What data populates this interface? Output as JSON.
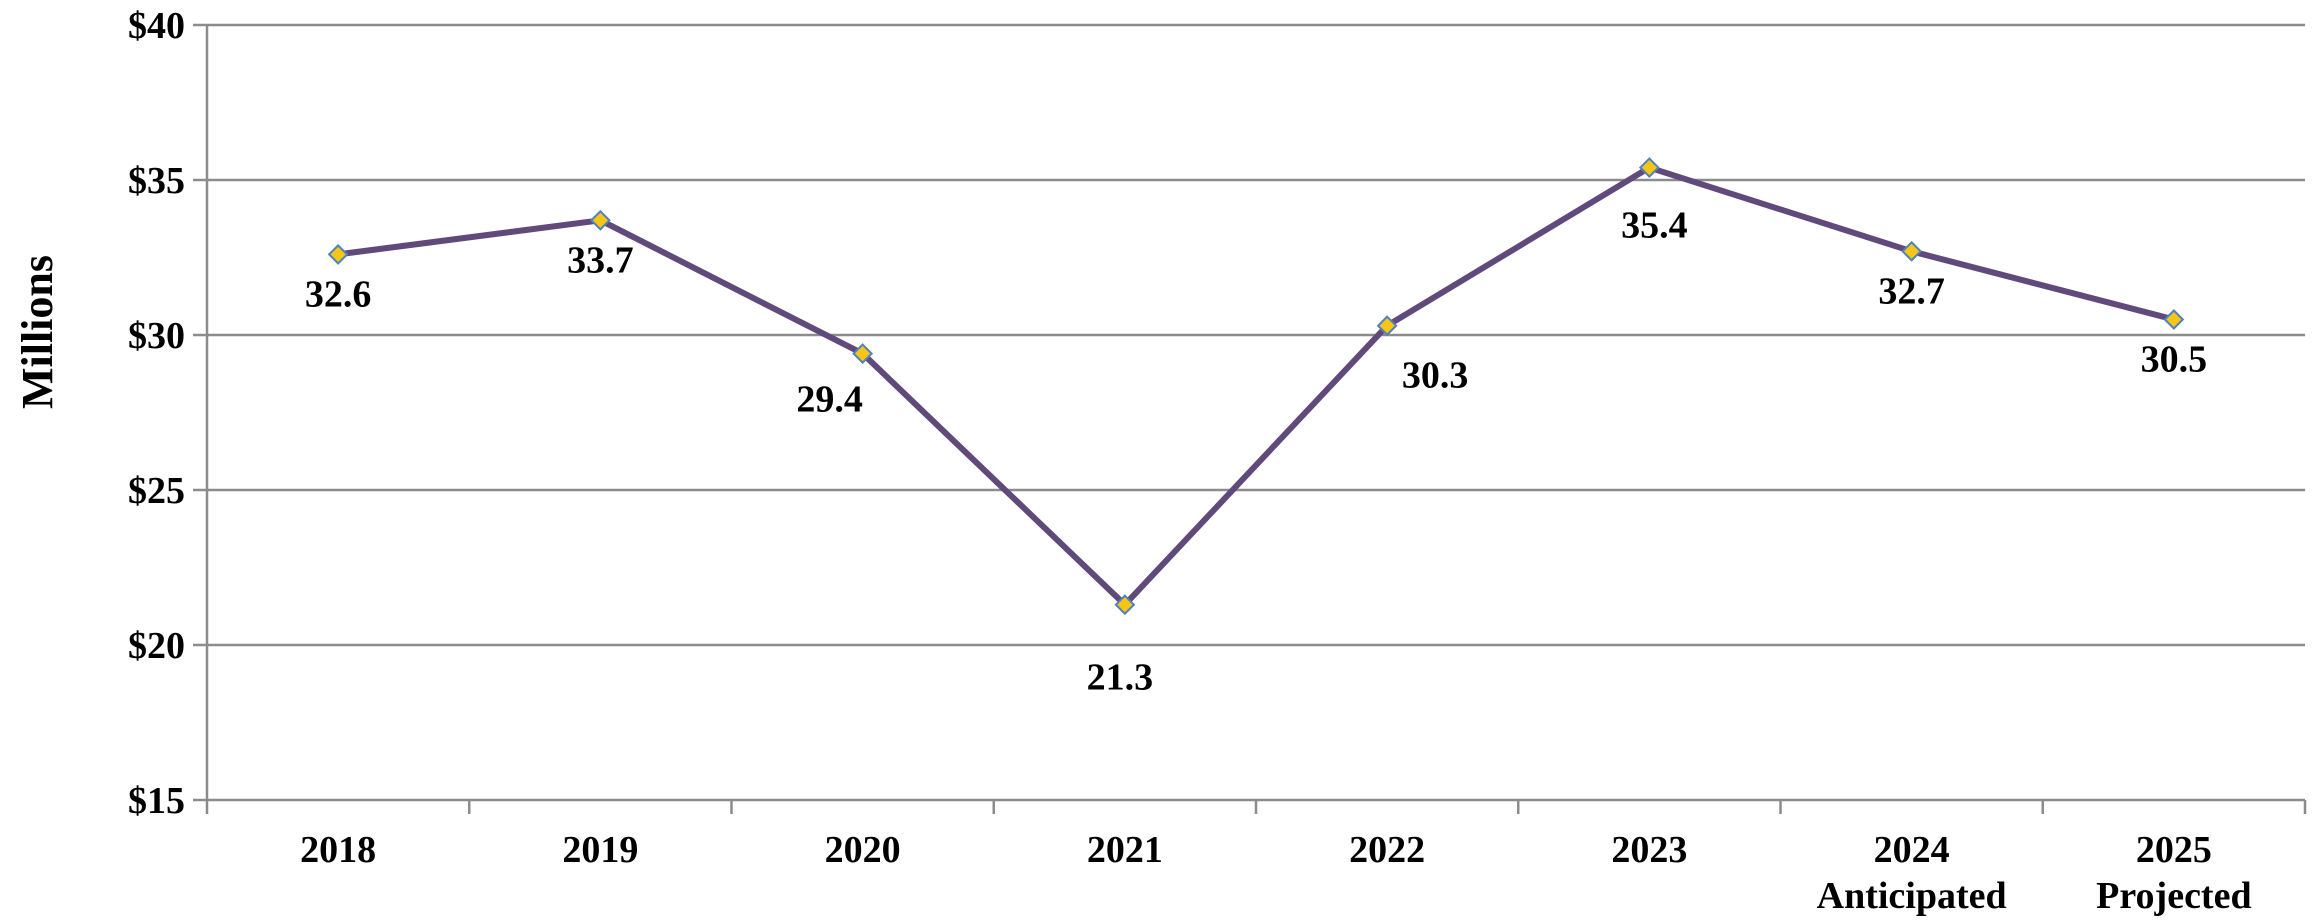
{
  "chart_data": {
    "type": "line",
    "title": "",
    "xlabel": "",
    "ylabel": "Millions",
    "categories": [
      {
        "line1": "2018",
        "line2": ""
      },
      {
        "line1": "2019",
        "line2": ""
      },
      {
        "line1": "2020",
        "line2": ""
      },
      {
        "line1": "2021",
        "line2": ""
      },
      {
        "line1": "2022",
        "line2": ""
      },
      {
        "line1": "2023",
        "line2": ""
      },
      {
        "line1": "2024",
        "line2": "Anticipated"
      },
      {
        "line1": "2025",
        "line2": "Projected"
      }
    ],
    "series": [
      {
        "values": [
          32.6,
          33.7,
          29.4,
          21.3,
          30.3,
          35.4,
          32.7,
          30.5
        ],
        "labels": [
          "32.6",
          "33.7",
          "29.4",
          "21.3",
          "30.3",
          "35.4",
          "32.7",
          "30.5"
        ],
        "line_color": "#604a7b",
        "marker": "diamond",
        "marker_fill": "#f5c518",
        "marker_edge": "#4f81bd"
      }
    ],
    "ylim": [
      15,
      40
    ],
    "yticks": [
      {
        "value": 15,
        "label": "$15"
      },
      {
        "value": 20,
        "label": "$20"
      },
      {
        "value": 25,
        "label": "$25"
      },
      {
        "value": 30,
        "label": "$30"
      },
      {
        "value": 35,
        "label": "$35"
      },
      {
        "value": 40,
        "label": "$40"
      }
    ],
    "grid": true,
    "gridline_color": "#8c8c8c",
    "legend": "none"
  }
}
